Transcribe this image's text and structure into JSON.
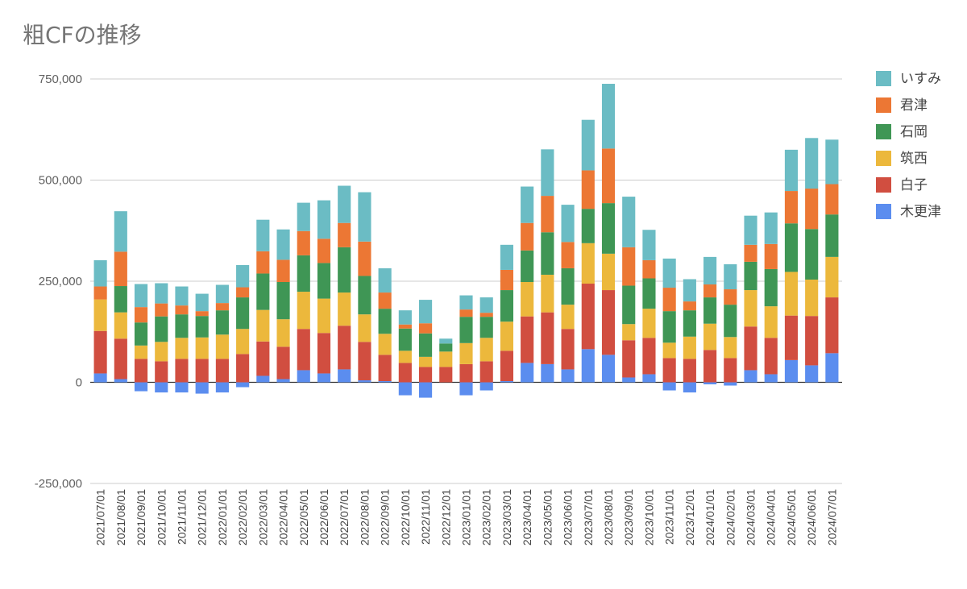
{
  "chart_data": {
    "type": "bar",
    "stacked": true,
    "title": "粗CFの推移",
    "xlabel": "",
    "ylabel": "",
    "ylim": [
      -250000,
      750000
    ],
    "yticks": [
      -250000,
      0,
      250000,
      500000,
      750000
    ],
    "ytick_labels": [
      "-250,000",
      "0",
      "250,000",
      "500,000",
      "750,000"
    ],
    "grid": true,
    "legend_position": "right",
    "categories": [
      "2021/07/01",
      "2021/08/01",
      "2021/09/01",
      "2021/10/01",
      "2021/11/01",
      "2021/12/01",
      "2022/01/01",
      "2022/02/01",
      "2022/03/01",
      "2022/04/01",
      "2022/05/01",
      "2022/06/01",
      "2022/07/01",
      "2022/08/01",
      "2022/09/01",
      "2022/10/01",
      "2022/11/01",
      "2022/12/01",
      "2023/01/01",
      "2023/02/01",
      "2023/03/01",
      "2023/04/01",
      "2023/05/01",
      "2023/06/01",
      "2023/07/01",
      "2023/08/01",
      "2023/09/01",
      "2023/10/01",
      "2023/11/01",
      "2023/12/01",
      "2024/01/01",
      "2024/02/01",
      "2024/03/01",
      "2024/04/01",
      "2024/05/01",
      "2024/06/01",
      "2024/07/01"
    ],
    "series": [
      {
        "name": "木更津",
        "color": "#5b8def",
        "values": [
          22000,
          8000,
          -22000,
          -25000,
          -25000,
          -28000,
          -25000,
          -12000,
          16000,
          8000,
          30000,
          22000,
          32000,
          5000,
          3000,
          -32000,
          -38000,
          0,
          -32000,
          -20000,
          3000,
          48000,
          45000,
          32000,
          82000,
          68000,
          12000,
          20000,
          -20000,
          -25000,
          -5000,
          -8000,
          30000,
          20000,
          55000,
          42000,
          72000
        ]
      },
      {
        "name": "白子",
        "color": "#d14e40",
        "values": [
          105000,
          100000,
          58000,
          52000,
          58000,
          58000,
          58000,
          70000,
          85000,
          80000,
          102000,
          100000,
          108000,
          95000,
          65000,
          48000,
          38000,
          38000,
          45000,
          52000,
          75000,
          115000,
          128000,
          100000,
          162000,
          160000,
          92000,
          90000,
          60000,
          58000,
          80000,
          60000,
          108000,
          90000,
          110000,
          122000,
          138000
        ]
      },
      {
        "name": "筑西",
        "color": "#ecb83c",
        "values": [
          78000,
          65000,
          33000,
          48000,
          52000,
          53000,
          60000,
          62000,
          78000,
          68000,
          92000,
          85000,
          82000,
          68000,
          52000,
          30000,
          25000,
          38000,
          52000,
          58000,
          72000,
          85000,
          93000,
          60000,
          100000,
          90000,
          40000,
          72000,
          38000,
          55000,
          65000,
          52000,
          90000,
          78000,
          108000,
          90000,
          100000
        ]
      },
      {
        "name": "石岡",
        "color": "#3f9655",
        "values": [
          0,
          65000,
          57000,
          63000,
          58000,
          53000,
          60000,
          78000,
          90000,
          92000,
          90000,
          88000,
          112000,
          95000,
          62000,
          55000,
          58000,
          20000,
          65000,
          52000,
          78000,
          78000,
          105000,
          90000,
          85000,
          125000,
          95000,
          75000,
          78000,
          65000,
          65000,
          80000,
          70000,
          92000,
          120000,
          125000,
          105000
        ]
      },
      {
        "name": "君津",
        "color": "#ec7734",
        "values": [
          32000,
          85000,
          38000,
          32000,
          22000,
          12000,
          18000,
          25000,
          55000,
          55000,
          60000,
          60000,
          60000,
          85000,
          40000,
          10000,
          25000,
          0,
          18000,
          10000,
          50000,
          68000,
          90000,
          65000,
          95000,
          135000,
          95000,
          45000,
          58000,
          22000,
          32000,
          38000,
          42000,
          62000,
          80000,
          100000,
          75000
        ]
      },
      {
        "name": "いすみ",
        "color": "#6bbcc4",
        "values": [
          65000,
          100000,
          57000,
          50000,
          47000,
          43000,
          45000,
          55000,
          78000,
          75000,
          70000,
          95000,
          92000,
          122000,
          60000,
          35000,
          58000,
          12000,
          35000,
          38000,
          62000,
          90000,
          115000,
          92000,
          125000,
          160000,
          125000,
          75000,
          72000,
          55000,
          68000,
          62000,
          72000,
          78000,
          102000,
          125000,
          110000
        ]
      }
    ]
  }
}
